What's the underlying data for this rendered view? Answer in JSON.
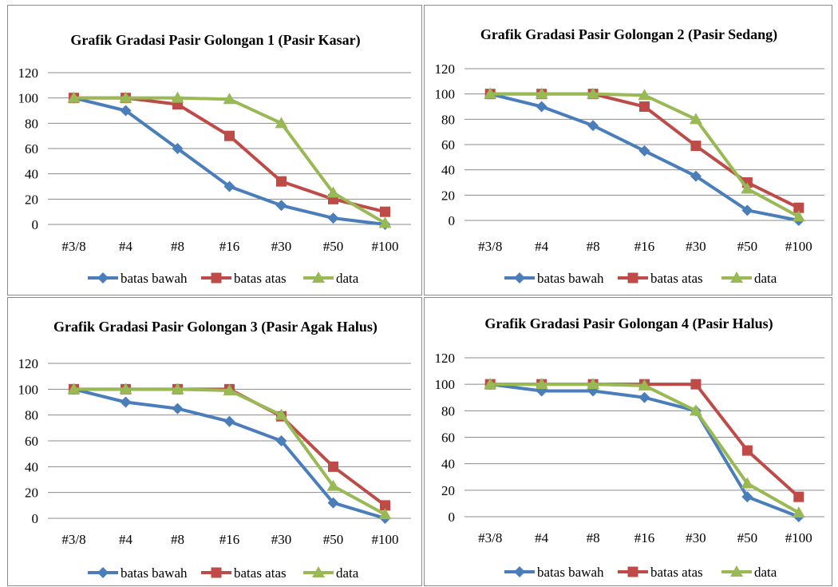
{
  "chart_data": [
    {
      "type": "line",
      "title": "Grafik Gradasi Pasir Golongan 1 (Pasir Kasar)",
      "categories": [
        "#3/8",
        "#4",
        "#8",
        "#16",
        "#30",
        "#50",
        "#100"
      ],
      "ylim": [
        0,
        120
      ],
      "yticks": [
        0,
        20,
        40,
        60,
        80,
        100,
        120
      ],
      "grid": true,
      "legend": "bottom",
      "series": [
        {
          "name": "batas bawah",
          "marker": "diamond",
          "color": "#4a7ebb",
          "values": [
            100,
            90,
            60,
            30,
            15,
            5,
            0
          ]
        },
        {
          "name": "batas atas",
          "marker": "square",
          "color": "#be4b48",
          "values": [
            100,
            100,
            95,
            70,
            34,
            20,
            10
          ]
        },
        {
          "name": "data",
          "marker": "triangle",
          "color": "#98b954",
          "values": [
            100,
            100,
            100,
            99,
            80,
            25,
            1
          ]
        }
      ]
    },
    {
      "type": "line",
      "title": "Grafik Gradasi Pasir Golongan 2 (Pasir Sedang)",
      "categories": [
        "#3/8",
        "#4",
        "#8",
        "#16",
        "#30",
        "#50",
        "#100"
      ],
      "ylim": [
        0,
        120
      ],
      "yticks": [
        0,
        20,
        40,
        60,
        80,
        100,
        120
      ],
      "grid": true,
      "legend": "bottom",
      "series": [
        {
          "name": "batas bawah",
          "marker": "diamond",
          "color": "#4a7ebb",
          "values": [
            100,
            90,
            75,
            55,
            35,
            8,
            0
          ]
        },
        {
          "name": "batas atas",
          "marker": "square",
          "color": "#be4b48",
          "values": [
            100,
            100,
            100,
            90,
            59,
            30,
            10
          ]
        },
        {
          "name": "data",
          "marker": "triangle",
          "color": "#98b954",
          "values": [
            100,
            100,
            100,
            99,
            80,
            25,
            3
          ]
        }
      ]
    },
    {
      "type": "line",
      "title": "Grafik Gradasi Pasir Golongan 3 (Pasir Agak Halus)",
      "categories": [
        "#3/8",
        "#4",
        "#8",
        "#16",
        "#30",
        "#50",
        "#100"
      ],
      "ylim": [
        0,
        120
      ],
      "yticks": [
        0,
        20,
        40,
        60,
        80,
        100,
        120
      ],
      "grid": true,
      "legend": "bottom",
      "series": [
        {
          "name": "batas bawah",
          "marker": "diamond",
          "color": "#4a7ebb",
          "values": [
            100,
            90,
            85,
            75,
            60,
            12,
            0
          ]
        },
        {
          "name": "batas atas",
          "marker": "square",
          "color": "#be4b48",
          "values": [
            100,
            100,
            100,
            100,
            79,
            40,
            10
          ]
        },
        {
          "name": "data",
          "marker": "triangle",
          "color": "#98b954",
          "values": [
            100,
            100,
            100,
            99,
            80,
            25,
            3
          ]
        }
      ]
    },
    {
      "type": "line",
      "title": "Grafik Gradasi Pasir Golongan 4 (Pasir Halus)",
      "categories": [
        "#3/8",
        "#4",
        "#8",
        "#16",
        "#30",
        "#50",
        "#100"
      ],
      "ylim": [
        0,
        120
      ],
      "yticks": [
        0,
        20,
        40,
        60,
        80,
        100,
        120
      ],
      "grid": true,
      "legend": "bottom",
      "series": [
        {
          "name": "batas bawah",
          "marker": "diamond",
          "color": "#4a7ebb",
          "values": [
            100,
            95,
            95,
            90,
            80,
            15,
            0
          ]
        },
        {
          "name": "batas atas",
          "marker": "square",
          "color": "#be4b48",
          "values": [
            100,
            100,
            100,
            100,
            100,
            50,
            15
          ]
        },
        {
          "name": "data",
          "marker": "triangle",
          "color": "#98b954",
          "values": [
            100,
            100,
            100,
            99,
            80,
            25,
            3
          ]
        }
      ]
    }
  ]
}
